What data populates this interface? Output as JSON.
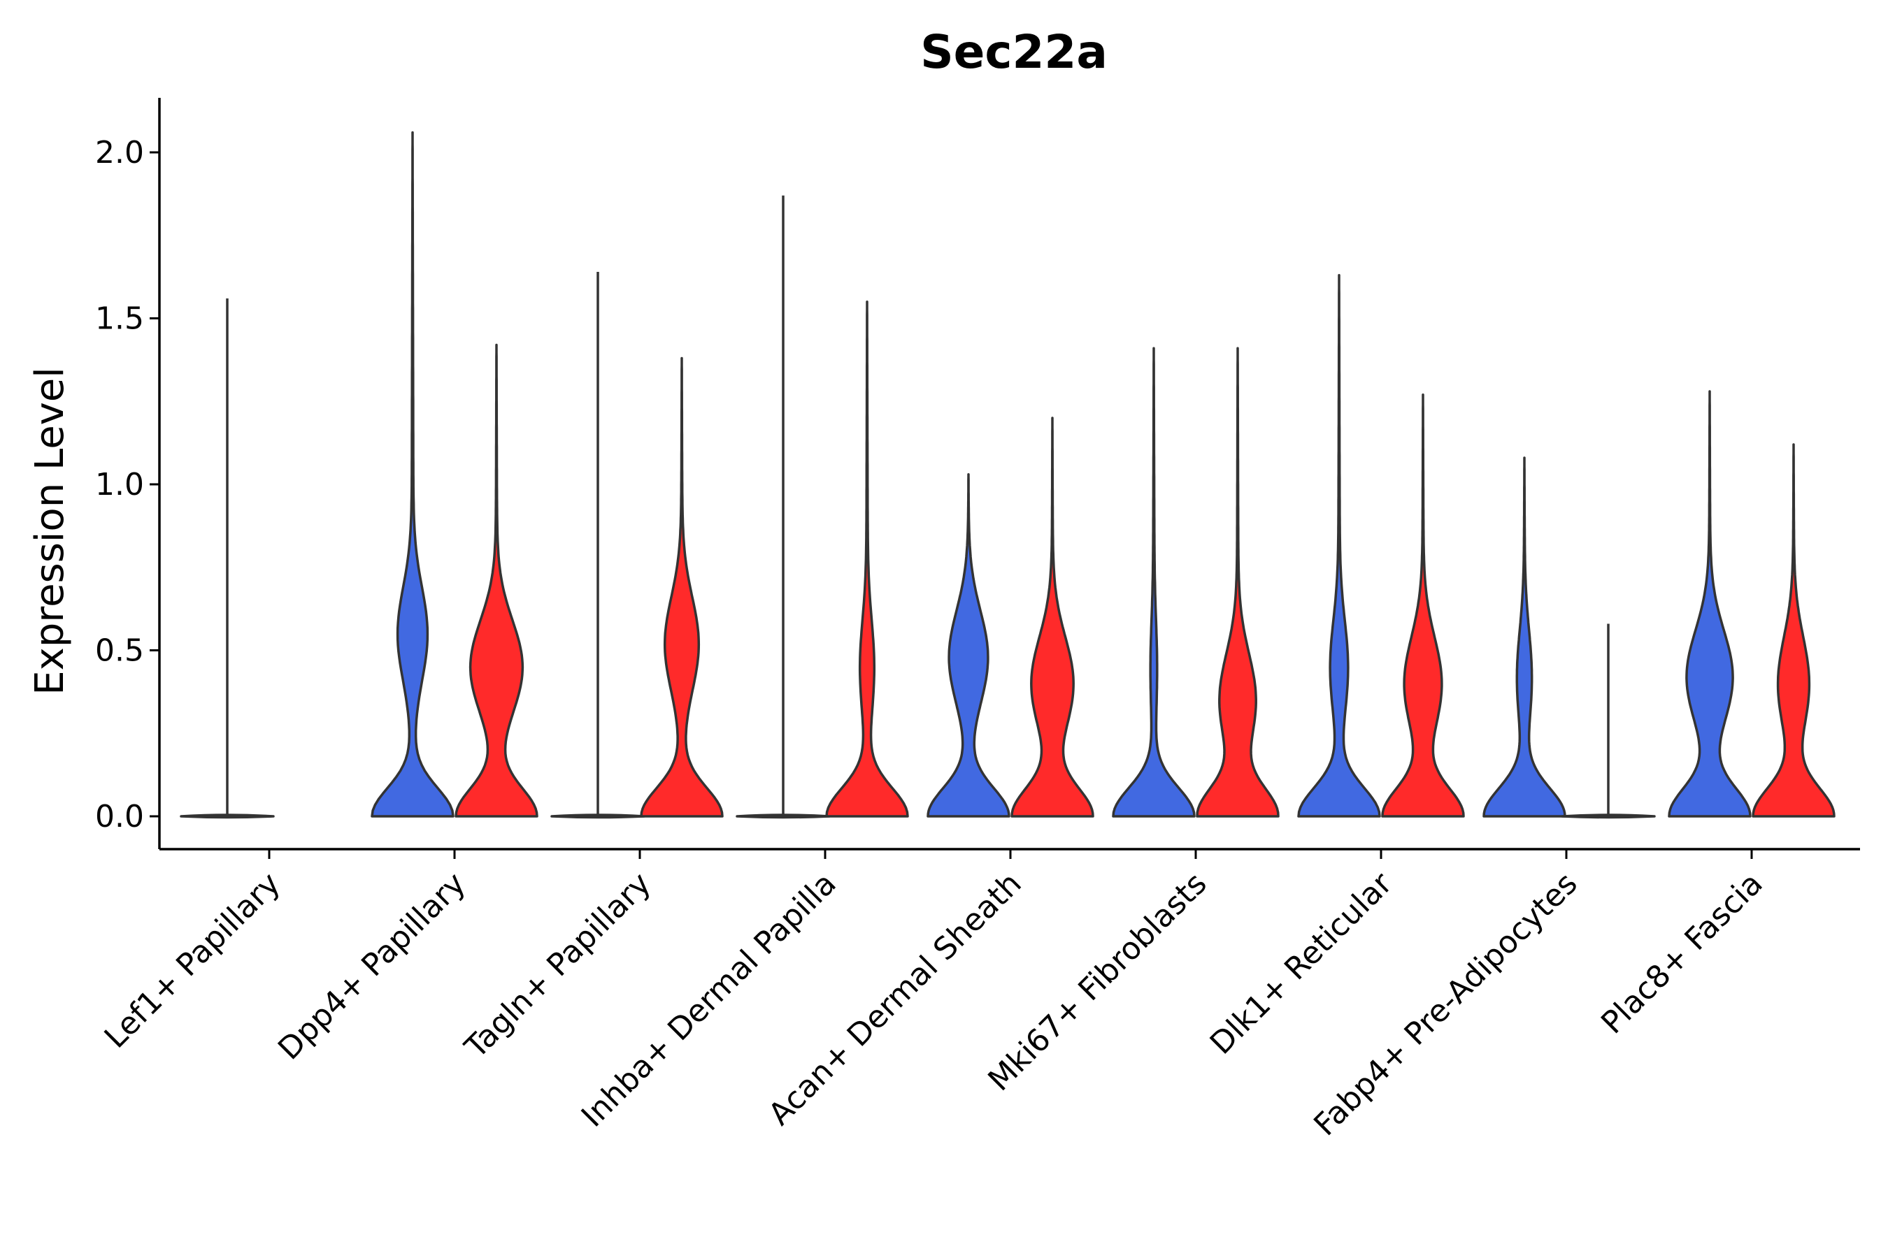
{
  "chart_data": {
    "type": "violin",
    "title": "Sec22a",
    "xlabel": "",
    "ylabel": "Expression Level",
    "ylim": [
      -0.1,
      2.15
    ],
    "yticks": [
      0.0,
      0.5,
      1.0,
      1.5,
      2.0
    ],
    "ytick_labels": [
      "0.0",
      "0.5",
      "1.0",
      "1.5",
      "2.0"
    ],
    "grid": false,
    "legend": "none",
    "series_colors": {
      "A": "#4169E1",
      "B": "#FF2A2A"
    },
    "categories": [
      "Lef1+ Papillary",
      "Dpp4+ Papillary",
      "Tagln+ Papillary",
      "Inhba+ Dermal Papilla",
      "Acan+ Dermal Sheath",
      "Mki67+ Fibroblasts",
      "Dlk1+ Reticular",
      "Fabp4+ Pre-Adipocytes",
      "Plac8+ Fascia"
    ],
    "violins": [
      {
        "category": "Lef1+ Papillary",
        "group": "A",
        "color": "#4169E1",
        "max": 1.56,
        "flat": true
      },
      {
        "category": "Lef1+ Papillary",
        "group": "B",
        "color": "#FF2A2A",
        "max": 0,
        "flat": true,
        "absent": true
      },
      {
        "category": "Dpp4+ Papillary",
        "group": "A",
        "color": "#4169E1",
        "max": 2.06,
        "flat": false,
        "mode": 0.55,
        "zeroPeak": 0.9,
        "modePeak": 0.32
      },
      {
        "category": "Dpp4+ Papillary",
        "group": "B",
        "color": "#FF2A2A",
        "max": 1.42,
        "flat": false,
        "mode": 0.45,
        "zeroPeak": 0.93,
        "modePeak": 0.6
      },
      {
        "category": "Tagln+ Papillary",
        "group": "A",
        "color": "#4169E1",
        "max": 1.64,
        "flat": true
      },
      {
        "category": "Tagln+ Papillary",
        "group": "B",
        "color": "#FF2A2A",
        "max": 1.38,
        "flat": false,
        "mode": 0.52,
        "zeroPeak": 0.9,
        "modePeak": 0.37
      },
      {
        "category": "Inhba+ Dermal Papilla",
        "group": "A",
        "color": "#4169E1",
        "max": 1.87,
        "flat": true
      },
      {
        "category": "Inhba+ Dermal Papilla",
        "group": "B",
        "color": "#FF2A2A",
        "max": 1.55,
        "flat": false,
        "mode": 0.45,
        "zeroPeak": 0.95,
        "modePeak": 0.15
      },
      {
        "category": "Acan+ Dermal Sheath",
        "group": "A",
        "color": "#4169E1",
        "max": 1.03,
        "flat": false,
        "mode": 0.48,
        "zeroPeak": 1.0,
        "modePeak": 0.48
      },
      {
        "category": "Acan+ Dermal Sheath",
        "group": "B",
        "color": "#FF2A2A",
        "max": 1.2,
        "flat": false,
        "mode": 0.4,
        "zeroPeak": 1.0,
        "modePeak": 0.52
      },
      {
        "category": "Mki67+ Fibroblasts",
        "group": "A",
        "color": "#4169E1",
        "max": 1.41,
        "flat": false,
        "mode": 0.45,
        "zeroPeak": 0.98,
        "modePeak": 0.06
      },
      {
        "category": "Mki67+ Fibroblasts",
        "group": "B",
        "color": "#FF2A2A",
        "max": 1.41,
        "flat": false,
        "mode": 0.35,
        "zeroPeak": 1.0,
        "modePeak": 0.45
      },
      {
        "category": "Dlk1+ Reticular",
        "group": "A",
        "color": "#4169E1",
        "max": 1.63,
        "flat": false,
        "mode": 0.45,
        "zeroPeak": 0.98,
        "modePeak": 0.2
      },
      {
        "category": "Dlk1+ Reticular",
        "group": "B",
        "color": "#FF2A2A",
        "max": 1.27,
        "flat": false,
        "mode": 0.4,
        "zeroPeak": 0.98,
        "modePeak": 0.45
      },
      {
        "category": "Fabp4+ Pre-Adipocytes",
        "group": "A",
        "color": "#4169E1",
        "max": 1.08,
        "flat": false,
        "mode": 0.42,
        "zeroPeak": 1.0,
        "modePeak": 0.17
      },
      {
        "category": "Fabp4+ Pre-Adipocytes",
        "group": "B",
        "color": "#FF2A2A",
        "max": 0.58,
        "flat": true
      },
      {
        "category": "Plac8+ Fascia",
        "group": "A",
        "color": "#4169E1",
        "max": 1.28,
        "flat": false,
        "mode": 0.42,
        "zeroPeak": 1.0,
        "modePeak": 0.57
      },
      {
        "category": "Plac8+ Fascia",
        "group": "B",
        "color": "#FF2A2A",
        "max": 1.12,
        "flat": false,
        "mode": 0.4,
        "zeroPeak": 1.0,
        "modePeak": 0.38
      }
    ]
  }
}
